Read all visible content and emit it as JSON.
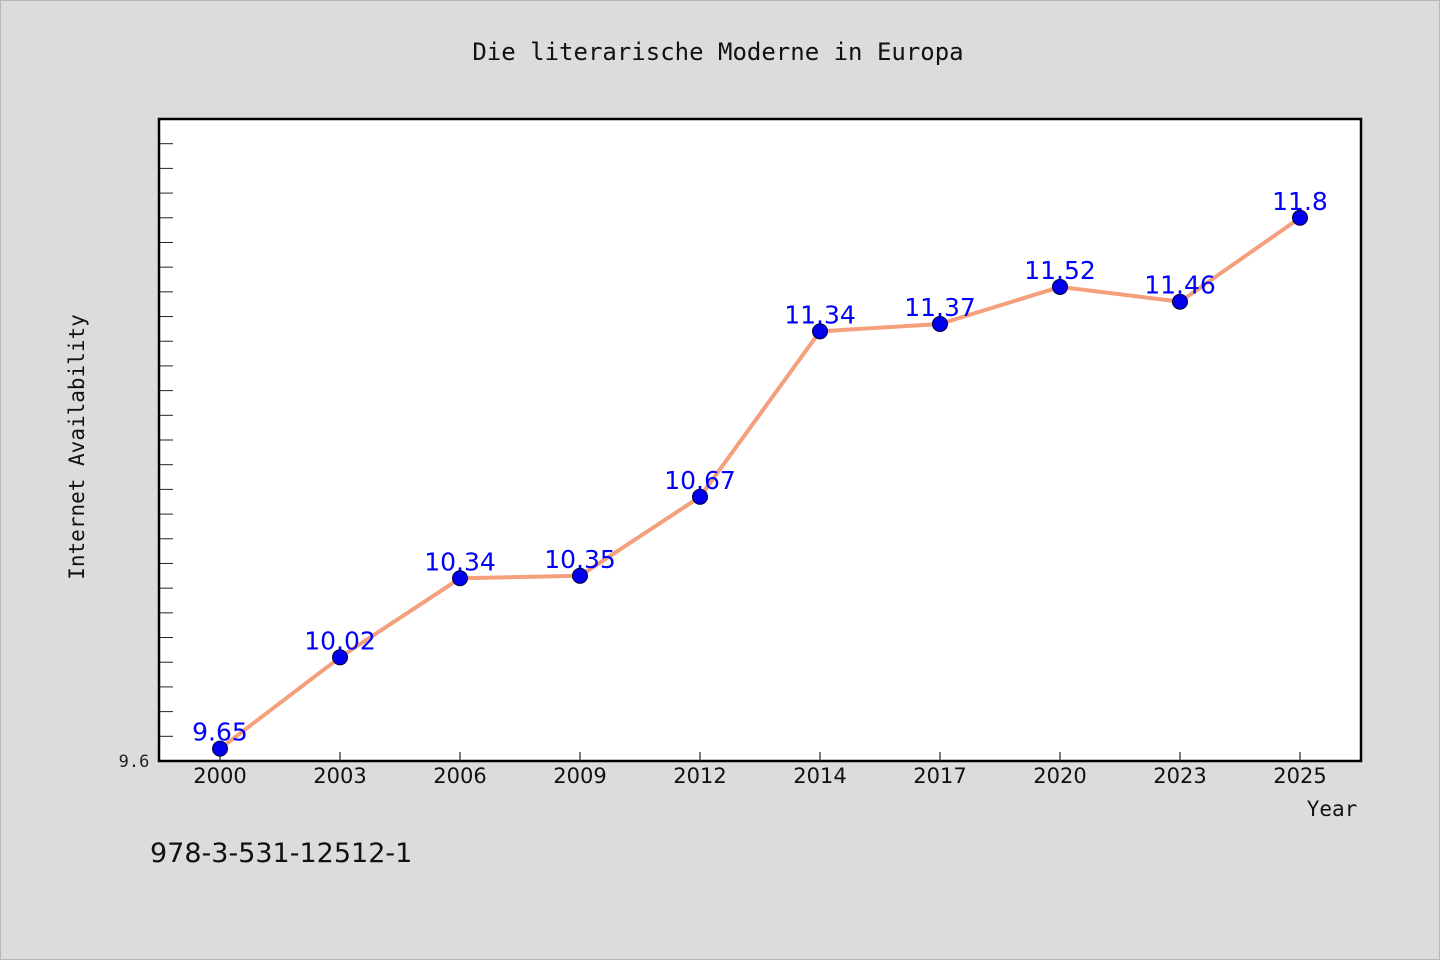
{
  "chart_data": {
    "type": "line",
    "title": "Die literarische Moderne in Europa",
    "xlabel": "Year",
    "ylabel": "Internet Availability",
    "categories": [
      "2000",
      "2003",
      "2006",
      "2009",
      "2012",
      "2014",
      "2017",
      "2020",
      "2023",
      "2025"
    ],
    "values": [
      9.65,
      10.02,
      10.34,
      10.35,
      10.67,
      11.34,
      11.37,
      11.52,
      11.46,
      11.8
    ],
    "data_labels": [
      "9.65",
      "10.02",
      "10.34",
      "10.35",
      "10.67",
      "11.34",
      "11.37",
      "11.52",
      "11.46",
      "11.8"
    ],
    "ylim": [
      9.6,
      12.2
    ],
    "y_tick_label": "9.6",
    "grid": false,
    "line_color": "#f4a07c",
    "marker_color": "#0000ee",
    "label_color": "#0000ff",
    "background_color": "#dcdcdc",
    "plot_background": "#ffffff"
  },
  "footer": {
    "isbn": "978-3-531-12512-1"
  }
}
